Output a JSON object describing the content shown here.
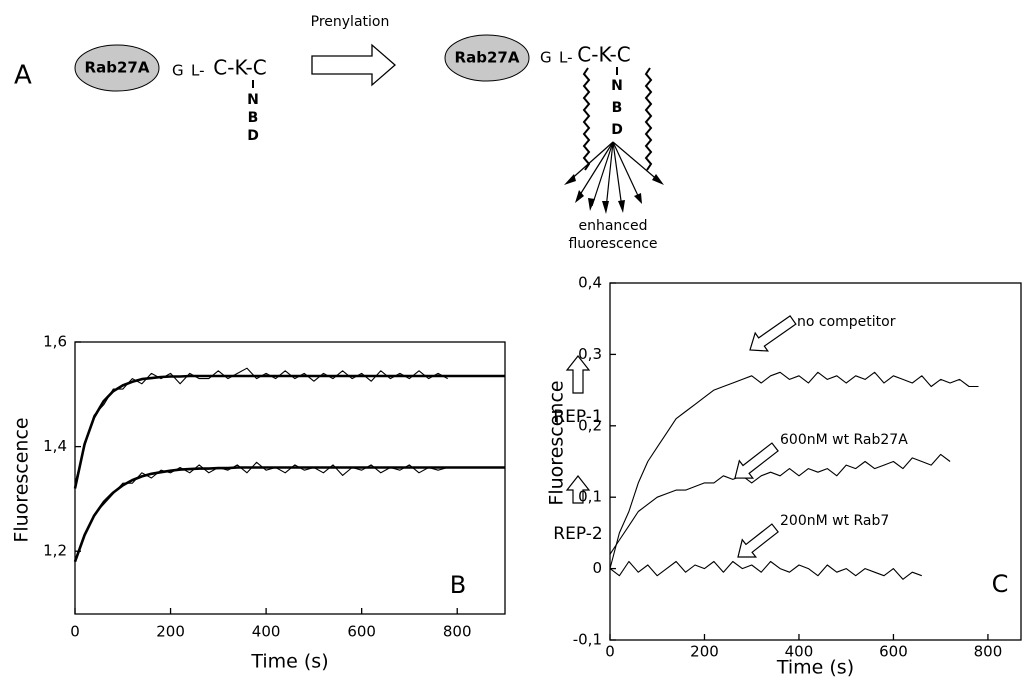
{
  "diagram": {
    "panel": "A",
    "left": {
      "protein": "Rab27A",
      "residues": [
        "G",
        "L-"
      ],
      "motif": "C-K-C",
      "label": [
        "N",
        "B",
        "D"
      ]
    },
    "arrow_label": "Prenylation",
    "right": {
      "protein": "Rab27A",
      "residues": [
        "G",
        "L-"
      ],
      "motif": "C-K-C",
      "label": [
        "N",
        "B",
        "D"
      ]
    },
    "caption": [
      "enhanced",
      "fluorescence"
    ]
  },
  "chart_data": [
    {
      "type": "line",
      "xlabel": "Time (s)",
      "ylabel": "Fluorescence",
      "panel_label": "B",
      "annotations": [
        "REP-1",
        "REP-2"
      ],
      "x": [
        0,
        20,
        40,
        60,
        80,
        100,
        120,
        140,
        160,
        180,
        200,
        220,
        240,
        260,
        280,
        300,
        320,
        340,
        360,
        380,
        400,
        420,
        440,
        460,
        480,
        500,
        520,
        540,
        560,
        580,
        600,
        620,
        640,
        660,
        680,
        700,
        720,
        740,
        760,
        780,
        800,
        820,
        840,
        860,
        880,
        900
      ],
      "series": [
        {
          "color": "#000000",
          "values": [
            1.33,
            1.4,
            1.46,
            1.48,
            1.51,
            1.51,
            1.53,
            1.52,
            1.54,
            1.53,
            1.54,
            1.52,
            1.54,
            1.53,
            1.53,
            1.545,
            1.53,
            1.54,
            1.55,
            1.53,
            1.54,
            1.53,
            1.545,
            1.53,
            1.54,
            1.525,
            1.54,
            1.53,
            1.545,
            1.53,
            1.54,
            1.525,
            1.545,
            1.53,
            1.54,
            1.53,
            1.545,
            1.53,
            1.54,
            1.53,
            null,
            null,
            null,
            null,
            null,
            null
          ]
        },
        {
          "color": "#000000",
          "values": [
            1.18,
            1.23,
            1.27,
            1.29,
            1.31,
            1.33,
            1.33,
            1.35,
            1.34,
            1.355,
            1.35,
            1.36,
            1.35,
            1.365,
            1.35,
            1.36,
            1.355,
            1.365,
            1.35,
            1.37,
            1.355,
            1.36,
            1.35,
            1.365,
            1.355,
            1.36,
            1.35,
            1.365,
            1.345,
            1.36,
            1.355,
            1.365,
            1.35,
            1.36,
            1.355,
            1.365,
            1.35,
            1.36,
            1.355,
            1.36,
            null,
            null,
            null,
            null,
            null,
            null
          ]
        },
        {
          "color": "#000000",
          "values": [
            1.32,
            1.405,
            1.456,
            1.487,
            1.506,
            1.517,
            1.524,
            1.529,
            1.531,
            1.533,
            1.534,
            1.534,
            1.535,
            1.535,
            1.535,
            1.535,
            1.535,
            1.535,
            1.535,
            1.535,
            1.535,
            1.535,
            1.535,
            1.535,
            1.535,
            1.535,
            1.535,
            1.535,
            1.535,
            1.535,
            1.535,
            1.535,
            1.535,
            1.535,
            1.535,
            1.535,
            1.535,
            1.535,
            1.535,
            1.535,
            1.535,
            1.535,
            1.535,
            1.535,
            1.535,
            1.535
          ]
        },
        {
          "color": "#000000",
          "values": [
            1.18,
            1.231,
            1.268,
            1.294,
            1.312,
            1.326,
            1.336,
            1.343,
            1.348,
            1.351,
            1.354,
            1.356,
            1.357,
            1.358,
            1.358,
            1.359,
            1.359,
            1.36,
            1.36,
            1.36,
            1.36,
            1.36,
            1.36,
            1.36,
            1.36,
            1.36,
            1.36,
            1.36,
            1.36,
            1.36,
            1.36,
            1.36,
            1.36,
            1.36,
            1.36,
            1.36,
            1.36,
            1.36,
            1.36,
            1.36,
            1.36,
            1.36,
            1.36,
            1.36,
            1.36,
            1.36
          ]
        }
      ],
      "xlim": [
        0,
        900
      ],
      "xticks": [
        0,
        200,
        400,
        600,
        800
      ],
      "ylim": [
        1.08,
        1.6
      ],
      "yticks": [
        {
          "value": 1.2,
          "label": "1,2"
        },
        {
          "value": 1.4,
          "label": "1,4"
        },
        {
          "value": 1.6,
          "label": "1,6"
        }
      ]
    },
    {
      "type": "line",
      "xlabel": "Time (s)",
      "ylabel": "Fluorescence",
      "panel_label": "C",
      "annotations": [
        "no competitor",
        "600nM wt Rab27A",
        "200nM wt Rab7"
      ],
      "x": [
        0,
        20,
        40,
        60,
        80,
        100,
        120,
        140,
        160,
        180,
        200,
        220,
        240,
        260,
        280,
        300,
        320,
        340,
        360,
        380,
        400,
        420,
        440,
        460,
        480,
        500,
        520,
        540,
        560,
        580,
        600,
        620,
        640,
        660,
        680,
        700,
        720,
        740,
        760,
        780
      ],
      "series": [
        {
          "color": "#000000",
          "values": [
            0.0,
            0.05,
            0.08,
            0.12,
            0.15,
            0.17,
            0.19,
            0.21,
            0.22,
            0.23,
            0.24,
            0.25,
            0.255,
            0.26,
            0.265,
            0.27,
            0.26,
            0.27,
            0.275,
            0.265,
            0.27,
            0.26,
            0.275,
            0.265,
            0.27,
            0.26,
            0.27,
            0.265,
            0.275,
            0.26,
            0.27,
            0.265,
            0.26,
            0.27,
            0.255,
            0.265,
            0.26,
            0.265,
            0.255,
            0.255
          ]
        },
        {
          "color": "#000000",
          "values": [
            0.02,
            0.04,
            0.06,
            0.08,
            0.09,
            0.1,
            0.105,
            0.11,
            0.11,
            0.115,
            0.12,
            0.12,
            0.13,
            0.125,
            0.13,
            0.12,
            0.13,
            0.135,
            0.13,
            0.14,
            0.13,
            0.14,
            0.135,
            0.14,
            0.13,
            0.145,
            0.14,
            0.15,
            0.14,
            0.145,
            0.15,
            0.14,
            0.155,
            0.15,
            0.145,
            0.16,
            0.15,
            null,
            null,
            null
          ]
        },
        {
          "color": "#000000",
          "values": [
            0.0,
            -0.01,
            0.01,
            -0.005,
            0.005,
            -0.01,
            0.0,
            0.01,
            -0.005,
            0.005,
            0.0,
            0.01,
            -0.005,
            0.01,
            0.0,
            0.005,
            -0.005,
            0.01,
            0.0,
            -0.005,
            0.005,
            0.0,
            -0.01,
            0.005,
            -0.005,
            0.0,
            -0.01,
            0.0,
            -0.005,
            -0.01,
            0.0,
            -0.015,
            -0.005,
            -0.01,
            null,
            null,
            null,
            null,
            null,
            null
          ]
        }
      ],
      "xlim": [
        0,
        870
      ],
      "xticks": [
        0,
        200,
        400,
        600,
        800
      ],
      "ylim": [
        -0.1,
        0.4
      ],
      "yticks": [
        {
          "value": -0.1,
          "label": "-0,1"
        },
        0,
        {
          "value": 0.1,
          "label": "0,1"
        },
        {
          "value": 0.2,
          "label": "0,2"
        },
        {
          "value": 0.3,
          "label": "0,3"
        },
        {
          "value": 0.4,
          "label": "0,4"
        }
      ]
    }
  ]
}
